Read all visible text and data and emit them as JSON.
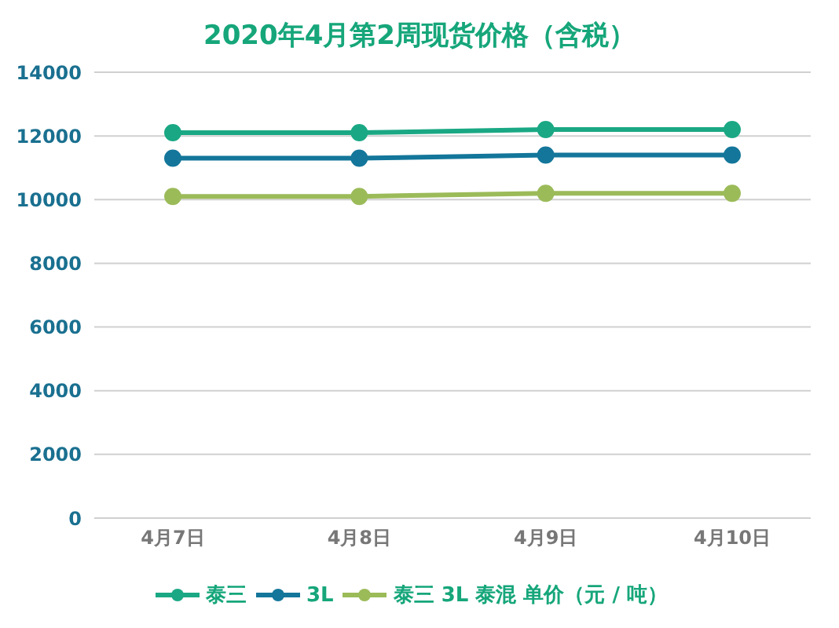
{
  "chart_data": {
    "type": "line",
    "title": "2020年4月第2周现货价格（含税）",
    "categories": [
      "4月7日",
      "4月8日",
      "4月9日",
      "4月10日"
    ],
    "series": [
      {
        "name": "泰三",
        "color": "#1aa884",
        "values": [
          12100,
          12100,
          12200,
          12200
        ]
      },
      {
        "name": "3L",
        "color": "#13769a",
        "values": [
          11300,
          11300,
          11400,
          11400
        ]
      },
      {
        "name": "泰三 3L 泰混 单价（元 / 吨）",
        "color": "#9bbb59",
        "values": [
          10100,
          10100,
          10200,
          10200
        ]
      }
    ],
    "ylim": [
      0,
      14000
    ],
    "yticks": [
      0,
      2000,
      4000,
      6000,
      8000,
      10000,
      12000,
      14000
    ],
    "grid": "y",
    "legend": "bottom",
    "marker": "circle",
    "line_style": "solid"
  }
}
